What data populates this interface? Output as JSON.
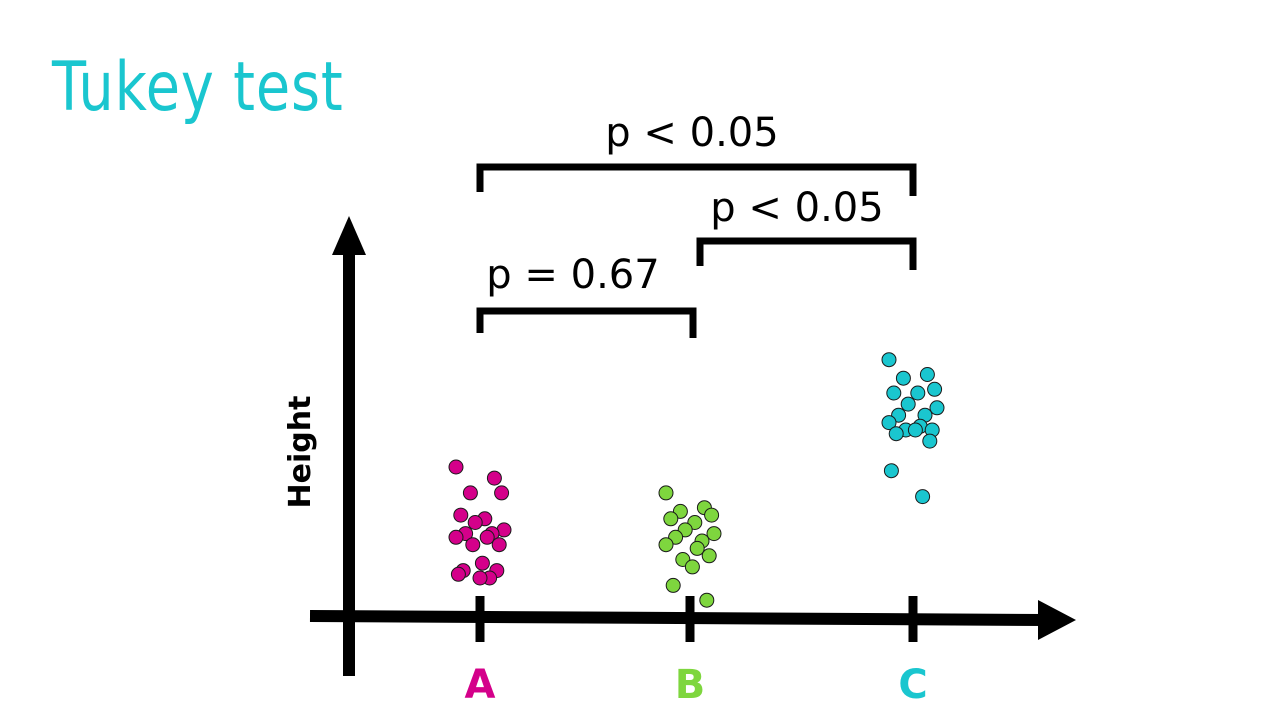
{
  "title": "Tukey test",
  "colors": {
    "title": "#1ac6cf",
    "axis": "#000000",
    "A": "#d4008a",
    "B": "#7ed63e",
    "C": "#1ac6cf"
  },
  "chart_data": {
    "type": "scatter",
    "title": "Tukey test",
    "xlabel": "",
    "ylabel": "Height",
    "categories": [
      "A",
      "B",
      "C"
    ],
    "series": [
      {
        "name": "A",
        "values": [
          40,
          37,
          33,
          33,
          27,
          26,
          25,
          23,
          22,
          22,
          21,
          21,
          19,
          19,
          14,
          12,
          12,
          11,
          10,
          10
        ]
      },
      {
        "name": "B",
        "values": [
          33,
          29,
          28,
          27,
          26,
          25,
          23,
          22,
          21,
          20,
          19,
          18,
          16,
          15,
          13,
          8,
          4
        ]
      },
      {
        "name": "C",
        "values": [
          69,
          65,
          64,
          61,
          60,
          60,
          57,
          56,
          54,
          54,
          52,
          51,
          50,
          50,
          50,
          49,
          47,
          39,
          32
        ]
      }
    ],
    "comparisons": [
      {
        "pair": [
          "A",
          "B"
        ],
        "label": "p = 0.67"
      },
      {
        "pair": [
          "B",
          "C"
        ],
        "label": "p < 0.05"
      },
      {
        "pair": [
          "A",
          "C"
        ],
        "label": "p < 0.05"
      }
    ],
    "ylim": [
      0,
      100
    ],
    "grid": false,
    "legend": "none"
  }
}
